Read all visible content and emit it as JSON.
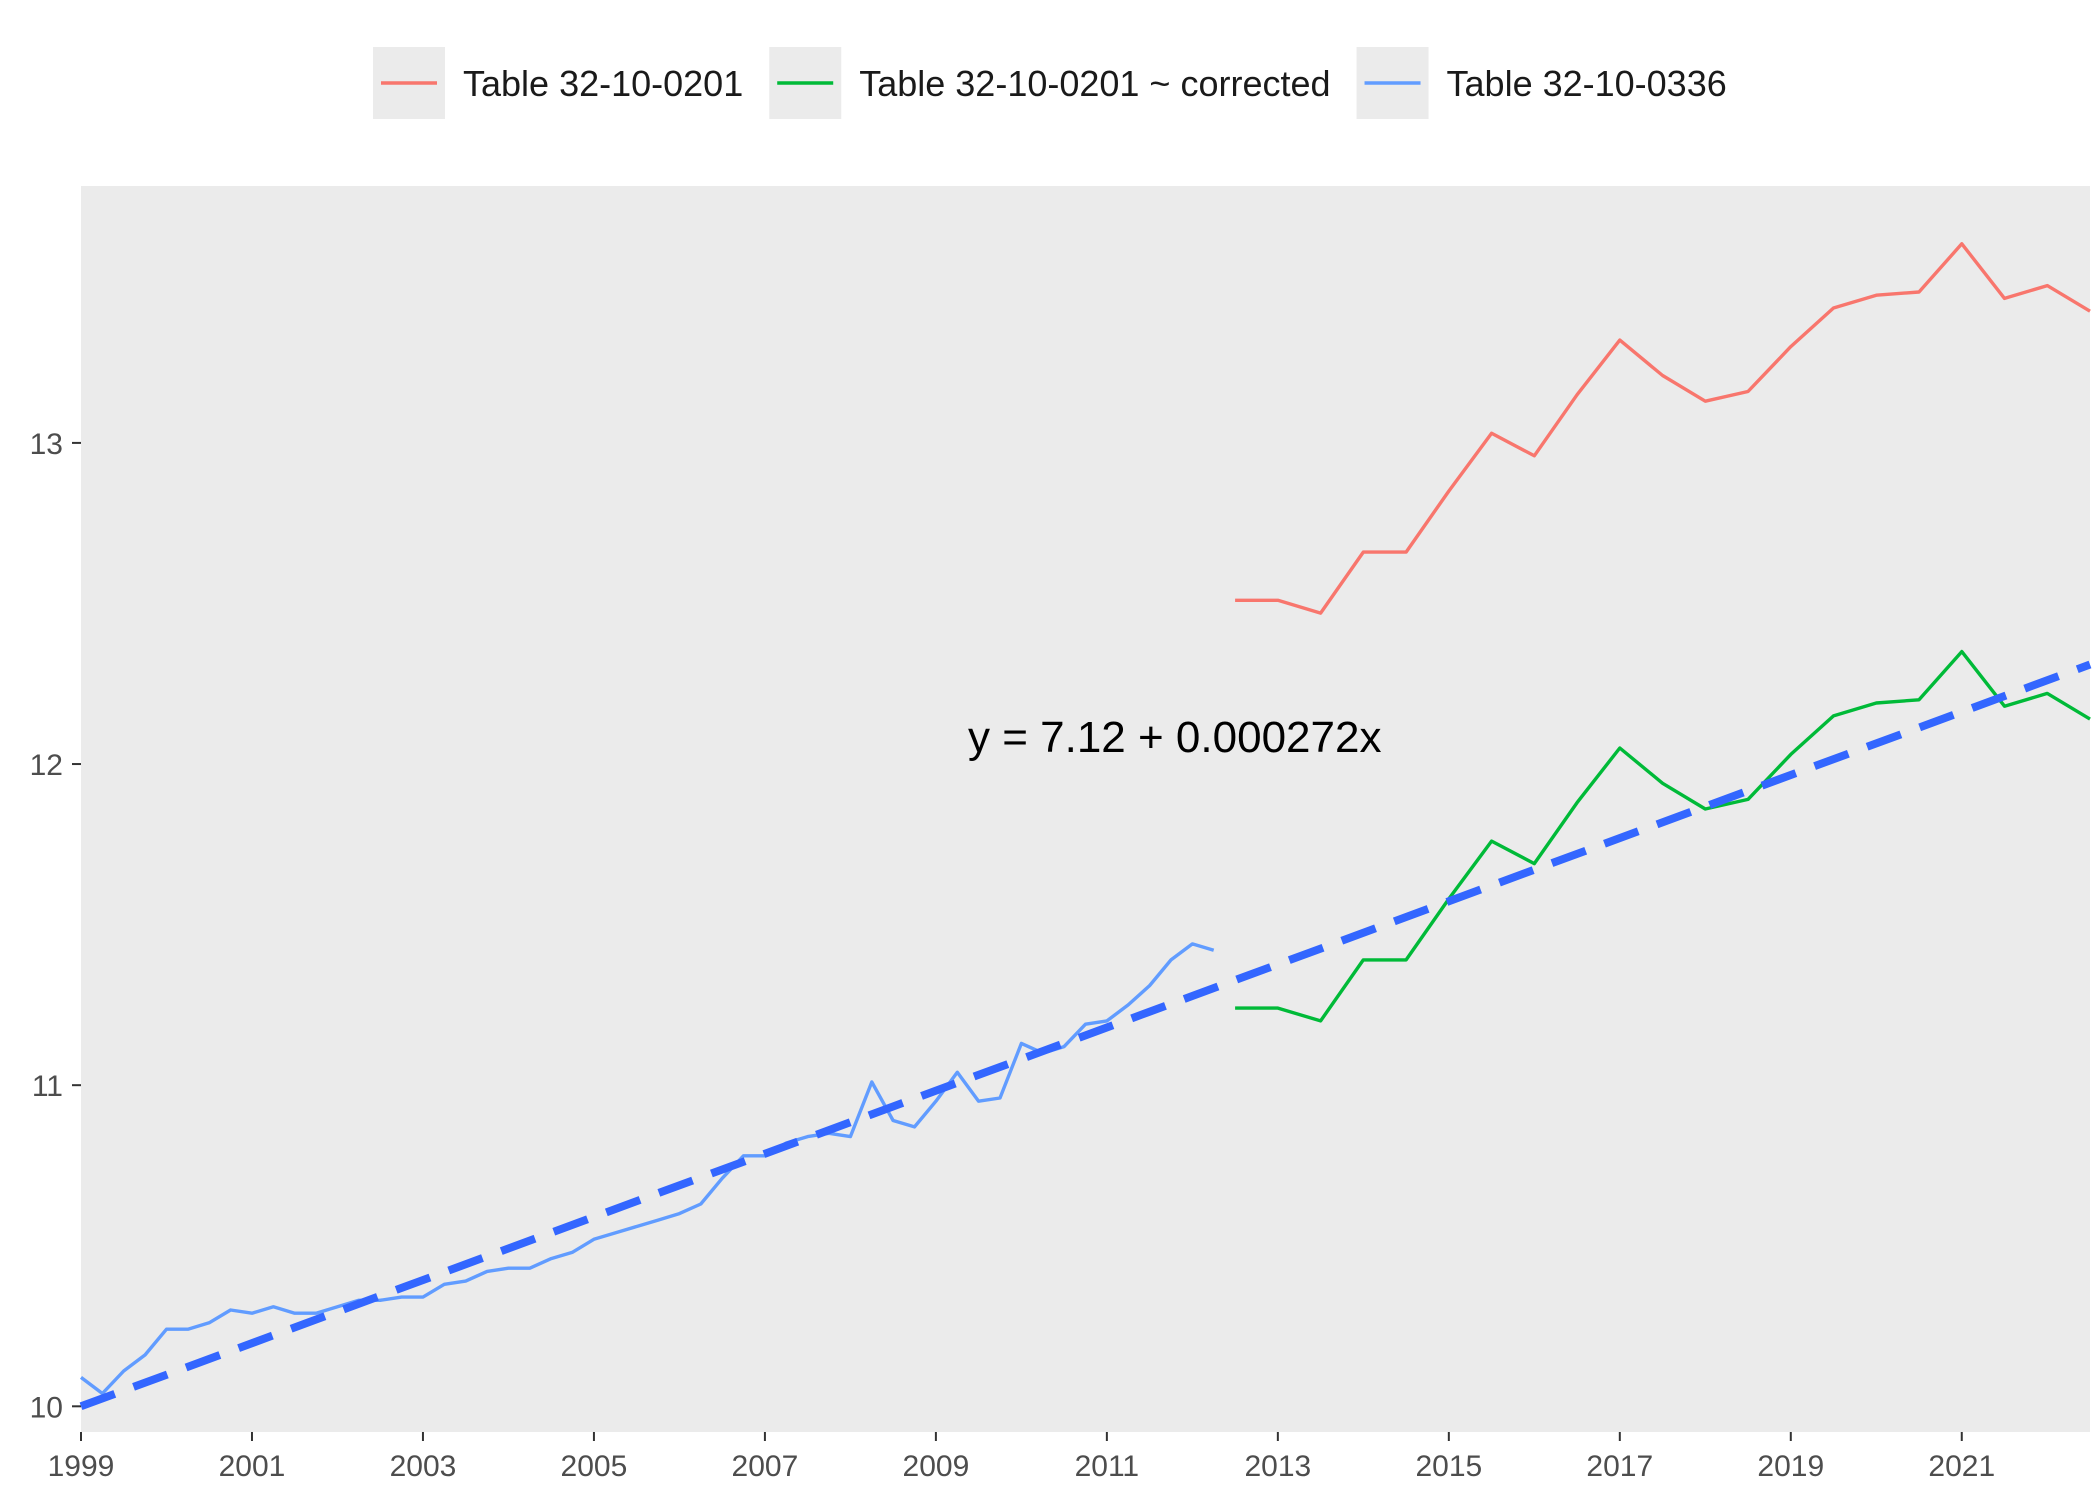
{
  "chart_data": {
    "type": "line",
    "title": "",
    "xlabel": "",
    "ylabel": "",
    "xlim": [
      1999,
      2022.5
    ],
    "ylim": [
      9.92,
      13.8
    ],
    "x_ticks": [
      1999,
      2001,
      2003,
      2005,
      2007,
      2009,
      2011,
      2013,
      2015,
      2017,
      2019,
      2021
    ],
    "y_ticks": [
      10,
      11,
      12,
      13
    ],
    "grid": false,
    "legend_position": "top",
    "annotation": "y = 7.12 + 0.000272x",
    "series": [
      {
        "name": "Table 32-10-0201",
        "color": "#F8766D",
        "x": [
          2012.5,
          2013.0,
          2013.5,
          2014.0,
          2014.5,
          2015.0,
          2015.5,
          2016.0,
          2016.5,
          2017.0,
          2017.5,
          2018.0,
          2018.5,
          2019.0,
          2019.5,
          2020.0,
          2020.5,
          2021.0,
          2021.5,
          2022.0,
          2022.5
        ],
        "y": [
          12.51,
          12.51,
          12.47,
          12.66,
          12.66,
          12.85,
          13.03,
          12.96,
          13.15,
          13.32,
          13.21,
          13.13,
          13.16,
          13.3,
          13.42,
          13.46,
          13.47,
          13.62,
          13.45,
          13.49,
          13.41
        ]
      },
      {
        "name": "Table 32-10-0201 ~ corrected",
        "color": "#00BA38",
        "x": [
          2012.5,
          2013.0,
          2013.5,
          2014.0,
          2014.5,
          2015.0,
          2015.5,
          2016.0,
          2016.5,
          2017.0,
          2017.5,
          2018.0,
          2018.5,
          2019.0,
          2019.5,
          2020.0,
          2020.5,
          2021.0,
          2021.5,
          2022.0,
          2022.5
        ],
        "y": [
          11.24,
          11.24,
          11.2,
          11.39,
          11.39,
          11.58,
          11.76,
          11.69,
          11.88,
          12.05,
          11.94,
          11.86,
          11.89,
          12.03,
          12.15,
          12.19,
          12.2,
          12.35,
          12.18,
          12.22,
          12.14
        ]
      },
      {
        "name": "Table 32-10-0336",
        "color": "#619CFF",
        "x": [
          1999.0,
          1999.25,
          1999.5,
          1999.75,
          2000.0,
          2000.25,
          2000.5,
          2000.75,
          2001.0,
          2001.25,
          2001.5,
          2001.75,
          2002.0,
          2002.25,
          2002.5,
          2002.75,
          2003.0,
          2003.25,
          2003.5,
          2003.75,
          2004.0,
          2004.25,
          2004.5,
          2004.75,
          2005.0,
          2005.25,
          2005.5,
          2005.75,
          2006.0,
          2006.25,
          2006.5,
          2006.75,
          2007.0,
          2007.25,
          2007.5,
          2007.75,
          2008.0,
          2008.25,
          2008.5,
          2008.75,
          2009.0,
          2009.25,
          2009.5,
          2009.75,
          2010.0,
          2010.25,
          2010.5,
          2010.75,
          2011.0,
          2011.25,
          2011.5,
          2011.75,
          2012.0,
          2012.25
        ],
        "y": [
          10.09,
          10.04,
          10.11,
          10.16,
          10.24,
          10.24,
          10.26,
          10.3,
          10.29,
          10.31,
          10.29,
          10.29,
          10.31,
          10.33,
          10.33,
          10.34,
          10.34,
          10.38,
          10.39,
          10.42,
          10.43,
          10.43,
          10.46,
          10.48,
          10.52,
          10.54,
          10.56,
          10.58,
          10.6,
          10.63,
          10.71,
          10.78,
          10.78,
          10.82,
          10.84,
          10.85,
          10.84,
          11.01,
          10.89,
          10.87,
          10.95,
          11.04,
          10.95,
          10.96,
          11.13,
          11.1,
          11.12,
          11.19,
          11.2,
          11.25,
          11.31,
          11.39,
          11.44,
          11.42
        ]
      }
    ],
    "trendline": {
      "style": "dashed",
      "color": "#3366FF",
      "x": [
        1999,
        2022.5
      ],
      "y": [
        10.0,
        12.31
      ]
    }
  }
}
